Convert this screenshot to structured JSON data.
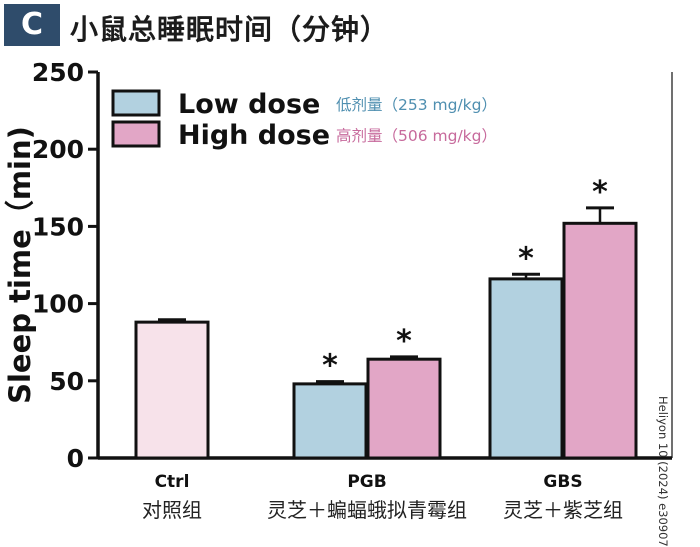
{
  "panel": {
    "label": "C",
    "title": "小鼠总睡眠时间（分钟）"
  },
  "credit": "Heliyon 10 (2024) e30907",
  "colors": {
    "badge": "#2f4c6b",
    "ctrl": "#f7e2ea",
    "low": "#b2d1e0",
    "high": "#e2a6c6",
    "low_text": "#4f8fb0",
    "high_text": "#c76a9c"
  },
  "chart_data": {
    "type": "bar",
    "ylabel": "Sleep time（min)",
    "ylim": [
      0,
      250
    ],
    "yticks": [
      0,
      50,
      100,
      150,
      200,
      250
    ],
    "legend_position": "top-left",
    "legend": [
      {
        "key": "low",
        "label": "Low dose",
        "sublabel": "低剂量（253 mg/kg）"
      },
      {
        "key": "high",
        "label": "High dose",
        "sublabel": "高剂量（506 mg/kg）"
      }
    ],
    "groups": [
      {
        "name": "Ctrl",
        "sublabel": "对照组",
        "bars": [
          {
            "series": "ctrl",
            "value": 88,
            "error": 1.5,
            "significant": false
          }
        ]
      },
      {
        "name": "PGB",
        "sublabel": "灵芝＋蝙蝠蛾拟青霉组",
        "bars": [
          {
            "series": "low",
            "value": 48,
            "error": 1.5,
            "significant": true
          },
          {
            "series": "high",
            "value": 64,
            "error": 1.5,
            "significant": true
          }
        ]
      },
      {
        "name": "GBS",
        "sublabel": "灵芝＋紫芝组",
        "bars": [
          {
            "series": "low",
            "value": 116,
            "error": 3,
            "significant": true
          },
          {
            "series": "high",
            "value": 152,
            "error": 10,
            "significant": true
          }
        ]
      }
    ]
  }
}
